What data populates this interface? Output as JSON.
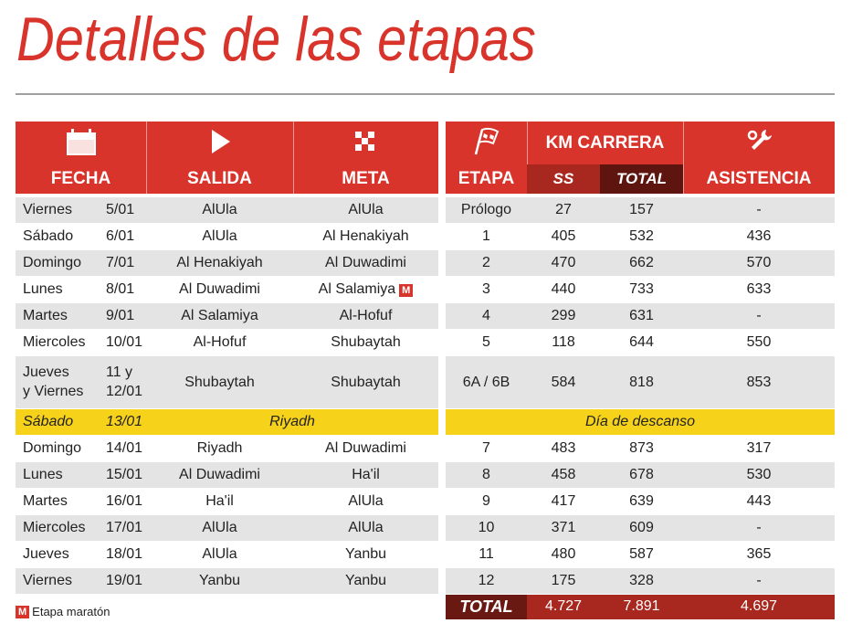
{
  "title": "Detalles de las etapas",
  "headers": {
    "fecha": "FECHA",
    "salida": "SALIDA",
    "meta": "META",
    "etapa": "ETAPA",
    "km": "KM CARRERA",
    "ss": "SS",
    "total": "TOTAL",
    "asistencia": "ASISTENCIA"
  },
  "rows": [
    {
      "day": "Viernes",
      "date": "5/01",
      "salida": "AlUla",
      "meta": "AlUla",
      "etapa": "Prólogo",
      "ss": 27,
      "total": 157,
      "asistencia": "-"
    },
    {
      "day": "Sábado",
      "date": "6/01",
      "salida": "AlUla",
      "meta": "Al Henakiyah",
      "etapa": 1,
      "ss": 405,
      "total": 532,
      "asistencia": 436
    },
    {
      "day": "Domingo",
      "date": "7/01",
      "salida": "Al Henakiyah",
      "meta": "Al Duwadimi",
      "etapa": 2,
      "ss": 470,
      "total": 662,
      "asistencia": 570
    },
    {
      "day": "Lunes",
      "date": "8/01",
      "salida": "Al Duwadimi",
      "meta": "Al Salamiya",
      "marathon": true,
      "etapa": 3,
      "ss": 440,
      "total": 733,
      "asistencia": 633
    },
    {
      "day": "Martes",
      "date": "9/01",
      "salida": "Al Salamiya",
      "meta": "Al-Hofuf",
      "etapa": 4,
      "ss": 299,
      "total": 631,
      "asistencia": "-"
    },
    {
      "day": "Miercoles",
      "date": "10/01",
      "salida": "Al-Hofuf",
      "meta": "Shubaytah",
      "etapa": 5,
      "ss": 118,
      "total": 644,
      "asistencia": 550
    },
    {
      "day": "Jueves\ny Viernes",
      "date": "11 y\n12/01",
      "salida": "Shubaytah",
      "meta": "Shubaytah",
      "etapa": "6A / 6B",
      "ss": 584,
      "total": 818,
      "asistencia": 853
    },
    {
      "day": "Sábado",
      "date": "13/01",
      "place": "Riyadh",
      "note": "Día de descanso"
    },
    {
      "day": "Domingo",
      "date": "14/01",
      "salida": "Riyadh",
      "meta": "Al Duwadimi",
      "etapa": 7,
      "ss": 483,
      "total": 873,
      "asistencia": 317
    },
    {
      "day": "Lunes",
      "date": "15/01",
      "salida": "Al Duwadimi",
      "meta": "Ha'il",
      "etapa": 8,
      "ss": 458,
      "total": 678,
      "asistencia": 530
    },
    {
      "day": "Martes",
      "date": "16/01",
      "salida": "Ha'il",
      "meta": "AlUla",
      "etapa": 9,
      "ss": 417,
      "total": 639,
      "asistencia": 443
    },
    {
      "day": "Miercoles",
      "date": "17/01",
      "salida": "AlUla",
      "meta": "AlUla",
      "etapa": 10,
      "ss": 371,
      "total": 609,
      "asistencia": "-"
    },
    {
      "day": "Jueves",
      "date": "18/01",
      "salida": "AlUla",
      "meta": "Yanbu",
      "etapa": 11,
      "ss": 480,
      "total": 587,
      "asistencia": 365
    },
    {
      "day": "Viernes",
      "date": "19/01",
      "salida": "Yanbu",
      "meta": "Yanbu",
      "etapa": 12,
      "ss": 175,
      "total": 328,
      "asistencia": "-"
    }
  ],
  "totals": {
    "label": "TOTAL",
    "ss": "4.727",
    "total": "7.891",
    "asistencia": "4.697"
  },
  "legend": {
    "badge": "M",
    "text": "Etapa maratón"
  }
}
